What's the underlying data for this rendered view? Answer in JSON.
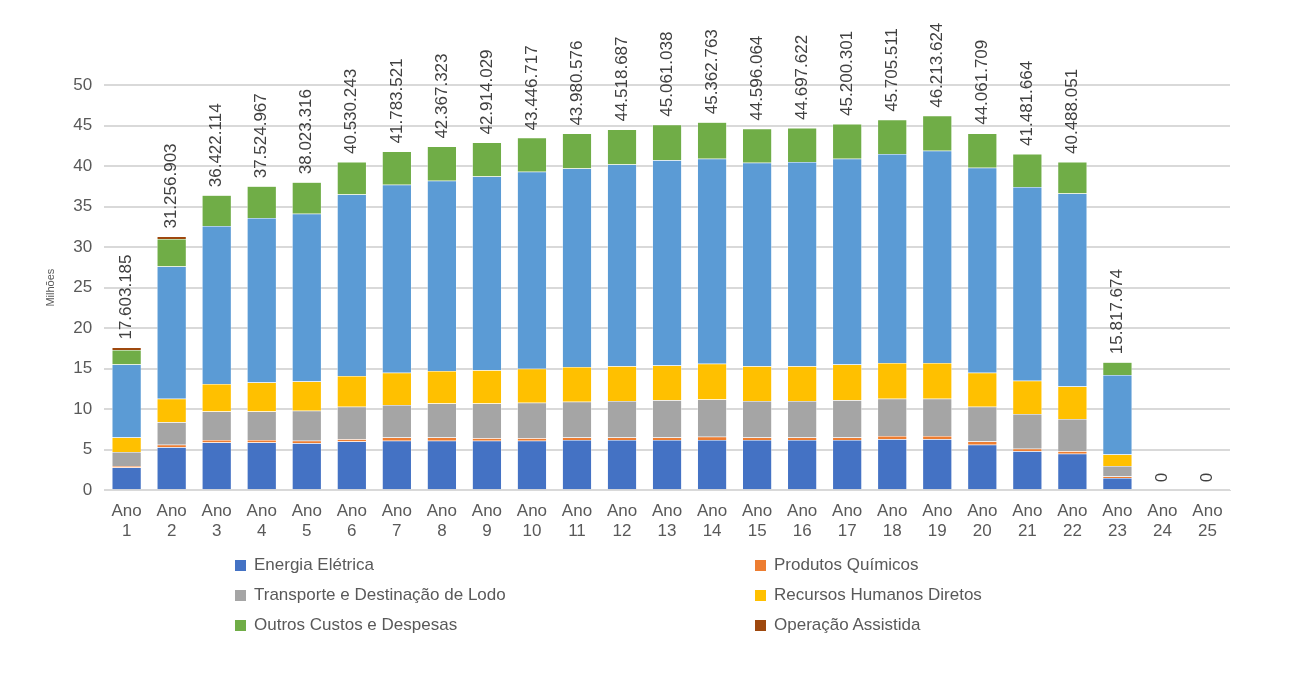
{
  "chart_data": {
    "type": "bar",
    "stacked": true,
    "ylabel": "Milhões",
    "categories": [
      "Ano 1",
      "Ano 2",
      "Ano 3",
      "Ano 4",
      "Ano 5",
      "Ano 6",
      "Ano 7",
      "Ano 8",
      "Ano 9",
      "Ano 10",
      "Ano 11",
      "Ano 12",
      "Ano 13",
      "Ano 14",
      "Ano 15",
      "Ano 16",
      "Ano 17",
      "Ano 18",
      "Ano 19",
      "Ano 20",
      "Ano 21",
      "Ano 22",
      "Ano 23",
      "Ano 24",
      "Ano 25"
    ],
    "series": [
      {
        "name": "Energia Elétrica",
        "color": "#4472c4",
        "values": [
          2.8,
          5.3,
          5.9,
          5.9,
          5.8,
          6.0,
          6.1,
          6.1,
          6.1,
          6.1,
          6.2,
          6.2,
          6.2,
          6.2,
          6.2,
          6.2,
          6.2,
          6.3,
          6.3,
          5.6,
          4.8,
          4.5,
          1.5,
          0,
          0
        ]
      },
      {
        "name": "Produtos Químicos",
        "color": "#ed7d31",
        "values": [
          0.2,
          0.3,
          0.3,
          0.3,
          0.3,
          0.3,
          0.4,
          0.4,
          0.3,
          0.3,
          0.3,
          0.3,
          0.3,
          0.4,
          0.3,
          0.3,
          0.3,
          0.4,
          0.4,
          0.4,
          0.3,
          0.3,
          0.2,
          0,
          0
        ]
      },
      {
        "name": "Transporte e Destinação de Lodo",
        "color": "#a5a5a5",
        "values": [
          1.7,
          2.8,
          3.5,
          3.5,
          3.7,
          4.0,
          4.0,
          4.2,
          4.3,
          4.4,
          4.4,
          4.5,
          4.6,
          4.6,
          4.5,
          4.5,
          4.6,
          4.6,
          4.6,
          4.3,
          4.3,
          4.0,
          1.3,
          0,
          0
        ]
      },
      {
        "name": "Recursos Humanos Diretos",
        "color": "#ffc000",
        "values": [
          1.8,
          2.9,
          3.4,
          3.6,
          3.6,
          3.8,
          4.0,
          4.0,
          4.1,
          4.2,
          4.3,
          4.3,
          4.3,
          4.4,
          4.3,
          4.3,
          4.4,
          4.4,
          4.4,
          4.2,
          4.1,
          4.0,
          1.4,
          0,
          0
        ]
      },
      {
        "color": "#5b9bd5",
        "values": [
          9.0,
          16.3,
          19.5,
          20.3,
          20.7,
          22.4,
          23.2,
          23.5,
          23.9,
          24.3,
          24.5,
          24.9,
          25.3,
          25.3,
          25.1,
          25.2,
          25.4,
          25.8,
          26.2,
          25.3,
          23.9,
          23.8,
          9.8,
          0,
          0
        ]
      },
      {
        "name": "Outros Custos e Despesas",
        "color": "#70ad47",
        "values": [
          1.8,
          3.4,
          3.8,
          3.9,
          3.9,
          4.0,
          4.1,
          4.2,
          4.2,
          4.2,
          4.3,
          4.3,
          4.4,
          4.5,
          4.2,
          4.2,
          4.3,
          4.2,
          4.3,
          4.2,
          4.1,
          3.9,
          1.6,
          0,
          0
        ]
      },
      {
        "name": "Operação Assistida",
        "color": "#9e480e",
        "values": [
          0.3,
          0.3,
          0,
          0,
          0,
          0,
          0,
          0,
          0,
          0,
          0,
          0,
          0,
          0,
          0,
          0,
          0,
          0,
          0,
          0,
          0,
          0,
          0,
          0,
          0
        ]
      }
    ],
    "annotations": [
      {
        "text": "17.603.185",
        "x": "Ano 1",
        "y": 17.6
      },
      {
        "text": "31.256.903",
        "x": "Ano 2",
        "y": 31.3
      },
      {
        "text": "36.422.114",
        "x": "Ano 3",
        "y": 36.4
      },
      {
        "text": "37.524.967",
        "x": "Ano 4",
        "y": 37.5
      },
      {
        "text": "38.023.316",
        "x": "Ano 5",
        "y": 38.0
      },
      {
        "text": "40.530.243",
        "x": "Ano 6",
        "y": 40.5
      },
      {
        "text": "41.783.521",
        "x": "Ano 7",
        "y": 41.8
      },
      {
        "text": "42.367.323",
        "x": "Ano 8",
        "y": 42.4
      },
      {
        "text": "42.914.029",
        "x": "Ano 9",
        "y": 42.9
      },
      {
        "text": "43.446.717",
        "x": "Ano 10",
        "y": 43.4
      },
      {
        "text": "43.980.576",
        "x": "Ano 11",
        "y": 44.0
      },
      {
        "text": "44.518.687",
        "x": "Ano 12",
        "y": 44.5
      },
      {
        "text": "45.061.038",
        "x": "Ano 13",
        "y": 45.1
      },
      {
        "text": "45.362.763",
        "x": "Ano 14",
        "y": 45.4
      },
      {
        "text": "44.596.064",
        "x": "Ano 15",
        "y": 44.6
      },
      {
        "text": "44.697.622",
        "x": "Ano 16",
        "y": 44.7
      },
      {
        "text": "45.200.301",
        "x": "Ano 17",
        "y": 45.2
      },
      {
        "text": "45.705.511",
        "x": "Ano 18",
        "y": 45.7
      },
      {
        "text": "46.213.624",
        "x": "Ano 19",
        "y": 46.2
      },
      {
        "text": "44.061.709",
        "x": "Ano 20",
        "y": 44.1
      },
      {
        "text": "41.481.664",
        "x": "Ano 21",
        "y": 41.5
      },
      {
        "text": "40.488.051",
        "x": "Ano 22",
        "y": 40.5
      },
      {
        "text": "15.817.674",
        "x": "Ano 23",
        "y": 15.8
      },
      {
        "text": "0",
        "x": "Ano 24",
        "y": 0
      },
      {
        "text": "0",
        "x": "Ano 25",
        "y": 0
      }
    ],
    "ylim": [
      0,
      50
    ],
    "yticks": [
      0,
      5,
      10,
      15,
      20,
      25,
      30,
      35,
      40,
      45,
      50
    ],
    "grid": "y",
    "legend": "bottom"
  }
}
